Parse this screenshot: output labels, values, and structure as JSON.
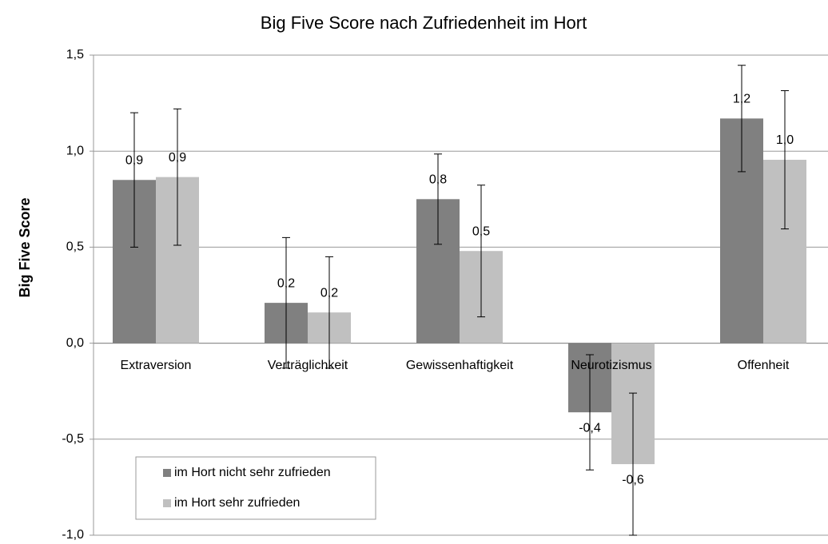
{
  "chart_data": {
    "type": "bar",
    "title": "Big Five Score nach Zufriedenheit im Hort",
    "y_label": "Big Five Score",
    "categories": [
      "Extraversion",
      "Verträglichkeit",
      "Gewissenhaftigkeit",
      "Neurotizismus",
      "Offenheit"
    ],
    "series": [
      {
        "name": "im Hort nicht sehr zufrieden",
        "color": "#808080",
        "values": [
          0.85,
          0.21,
          0.75,
          -0.36,
          1.17
        ],
        "errors": [
          0.35,
          0.34,
          0.235,
          0.3,
          0.277
        ],
        "value_labels": [
          "0,9",
          "0,2",
          "0,8",
          "-0,4",
          "1,2"
        ]
      },
      {
        "name": "im Hort sehr zufrieden",
        "color": "#c0c0c0",
        "values": [
          0.865,
          0.16,
          0.48,
          -0.63,
          0.955
        ],
        "errors": [
          0.355,
          0.29,
          0.343,
          0.37,
          0.36
        ],
        "value_labels": [
          "0,9",
          "0,2",
          "0,5",
          "-0,6",
          "1,0"
        ]
      }
    ],
    "ylim": [
      -1.0,
      1.5
    ],
    "yticks": [
      {
        "value": -1.0,
        "label": "-1,0"
      },
      {
        "value": -0.5,
        "label": "-0,5"
      },
      {
        "value": 0,
        "label": "0,0"
      },
      {
        "value": 0.5,
        "label": "0,5"
      },
      {
        "value": 1.0,
        "label": "1,0"
      },
      {
        "value": 1.5,
        "label": "1,5"
      }
    ],
    "grid": true,
    "legend": "lower left"
  }
}
